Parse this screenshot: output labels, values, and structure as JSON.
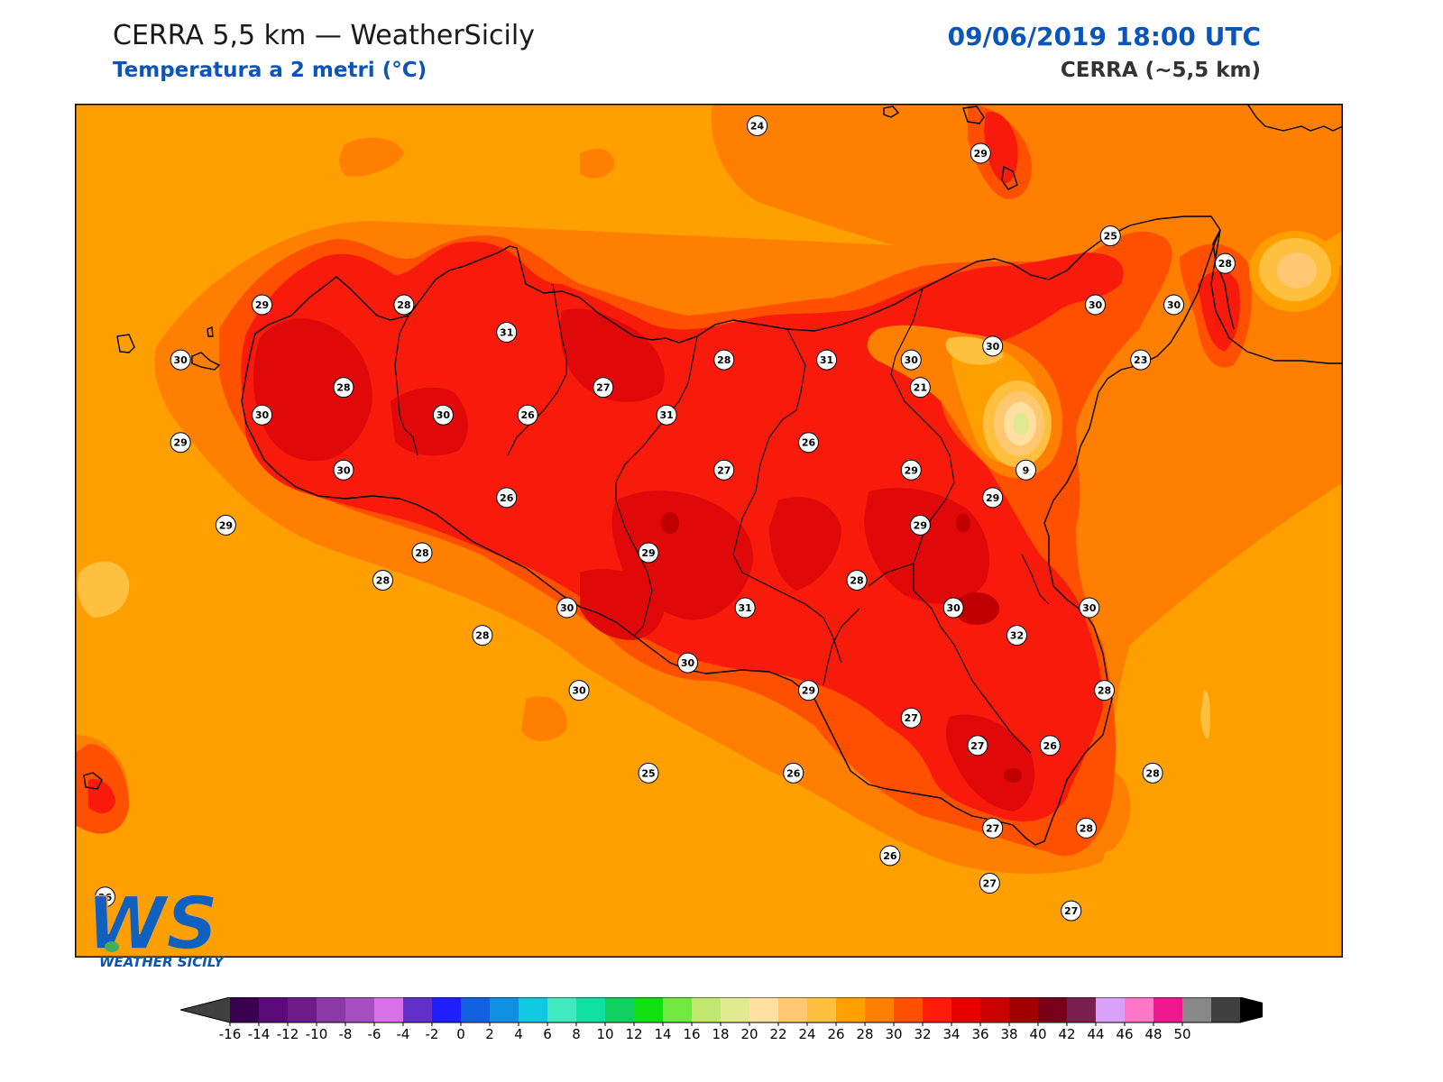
{
  "header": {
    "title": "CERRA 5,5 km — WeatherSicily",
    "subtitle": "Temperatura a 2 metri (°C)",
    "datetime": "09/06/2019 18:00 UTC",
    "model": "CERRA (~5,5 km)"
  },
  "colors": {
    "accent_blue": "#0a55b8",
    "sea_orange": "#ffa000",
    "land_red": "#f81a0a"
  },
  "colorbar": {
    "ticks": [
      "-16",
      "-14",
      "-12",
      "-10",
      "-8",
      "-6",
      "-4",
      "-2",
      "0",
      "2",
      "4",
      "6",
      "8",
      "10",
      "12",
      "14",
      "16",
      "18",
      "20",
      "22",
      "24",
      "26",
      "28",
      "30",
      "32",
      "34",
      "36",
      "38",
      "40",
      "42",
      "44",
      "46",
      "48",
      "50"
    ],
    "colors": [
      "#3a0050",
      "#5a0a7a",
      "#6e1c8a",
      "#8a3aa6",
      "#a64ec0",
      "#d870e8",
      "#6030c8",
      "#2020ff",
      "#1060e0",
      "#1090e0",
      "#10c8e0",
      "#40e8c0",
      "#10e0a0",
      "#10d060",
      "#10e010",
      "#70e840",
      "#c0e870",
      "#e0e890",
      "#ffe0a0",
      "#ffc870",
      "#ffc040",
      "#ffa000",
      "#ff8000",
      "#ff5000",
      "#ff1a0a",
      "#e80000",
      "#c80000",
      "#a00000",
      "#780018",
      "#7a2050",
      "#d8a0f8",
      "#ff78c8",
      "#f01890",
      "#888888",
      "#404040"
    ]
  },
  "map_labels": [
    {
      "v": "24",
      "lon": 14.11,
      "lat": 39.0
    },
    {
      "v": "29",
      "lon": 14.85,
      "lat": 38.9
    },
    {
      "v": "25",
      "lon": 15.28,
      "lat": 38.6
    },
    {
      "v": "28",
      "lon": 15.66,
      "lat": 38.5
    },
    {
      "v": "23",
      "lon": 15.38,
      "lat": 38.15
    },
    {
      "v": "29",
      "lon": 12.47,
      "lat": 38.35
    },
    {
      "v": "28",
      "lon": 12.94,
      "lat": 38.35
    },
    {
      "v": "31",
      "lon": 13.28,
      "lat": 38.25
    },
    {
      "v": "30",
      "lon": 12.2,
      "lat": 38.15
    },
    {
      "v": "28",
      "lon": 12.74,
      "lat": 38.05
    },
    {
      "v": "26",
      "lon": 13.35,
      "lat": 37.95
    },
    {
      "v": "27",
      "lon": 13.6,
      "lat": 38.05
    },
    {
      "v": "28",
      "lon": 14.0,
      "lat": 38.15
    },
    {
      "v": "31",
      "lon": 14.34,
      "lat": 38.15
    },
    {
      "v": "30",
      "lon": 14.62,
      "lat": 38.15
    },
    {
      "v": "30",
      "lon": 14.89,
      "lat": 38.2
    },
    {
      "v": "30",
      "lon": 15.23,
      "lat": 38.35
    },
    {
      "v": "30",
      "lon": 15.49,
      "lat": 38.35
    },
    {
      "v": "21",
      "lon": 14.65,
      "lat": 38.05
    },
    {
      "v": "30",
      "lon": 12.47,
      "lat": 37.95
    },
    {
      "v": "30",
      "lon": 13.07,
      "lat": 37.95
    },
    {
      "v": "31",
      "lon": 13.81,
      "lat": 37.95
    },
    {
      "v": "26",
      "lon": 14.28,
      "lat": 37.85
    },
    {
      "v": "29",
      "lon": 12.2,
      "lat": 37.85
    },
    {
      "v": "30",
      "lon": 12.74,
      "lat": 37.75
    },
    {
      "v": "27",
      "lon": 14.0,
      "lat": 37.75
    },
    {
      "v": "29",
      "lon": 14.62,
      "lat": 37.75
    },
    {
      "v": "29",
      "lon": 14.89,
      "lat": 37.65
    },
    {
      "v": "9",
      "lon": 15.0,
      "lat": 37.75
    },
    {
      "v": "26",
      "lon": 13.28,
      "lat": 37.65
    },
    {
      "v": "29",
      "lon": 12.35,
      "lat": 37.55
    },
    {
      "v": "28",
      "lon": 13.0,
      "lat": 37.45
    },
    {
      "v": "29",
      "lon": 13.75,
      "lat": 37.45
    },
    {
      "v": "29",
      "lon": 14.65,
      "lat": 37.55
    },
    {
      "v": "28",
      "lon": 12.87,
      "lat": 37.35
    },
    {
      "v": "30",
      "lon": 13.48,
      "lat": 37.25
    },
    {
      "v": "31",
      "lon": 14.07,
      "lat": 37.25
    },
    {
      "v": "28",
      "lon": 14.44,
      "lat": 37.35
    },
    {
      "v": "30",
      "lon": 14.76,
      "lat": 37.25
    },
    {
      "v": "30",
      "lon": 15.21,
      "lat": 37.25
    },
    {
      "v": "28",
      "lon": 13.2,
      "lat": 37.15
    },
    {
      "v": "32",
      "lon": 14.97,
      "lat": 37.15
    },
    {
      "v": "30",
      "lon": 13.88,
      "lat": 37.05
    },
    {
      "v": "30",
      "lon": 13.52,
      "lat": 36.95
    },
    {
      "v": "29",
      "lon": 14.28,
      "lat": 36.95
    },
    {
      "v": "28",
      "lon": 15.26,
      "lat": 36.95
    },
    {
      "v": "27",
      "lon": 14.62,
      "lat": 36.85
    },
    {
      "v": "27",
      "lon": 14.84,
      "lat": 36.75
    },
    {
      "v": "26",
      "lon": 15.08,
      "lat": 36.75
    },
    {
      "v": "25",
      "lon": 13.75,
      "lat": 36.65
    },
    {
      "v": "26",
      "lon": 14.23,
      "lat": 36.65
    },
    {
      "v": "28",
      "lon": 15.42,
      "lat": 36.65
    },
    {
      "v": "27",
      "lon": 14.89,
      "lat": 36.45
    },
    {
      "v": "28",
      "lon": 15.2,
      "lat": 36.45
    },
    {
      "v": "26",
      "lon": 14.55,
      "lat": 36.35
    },
    {
      "v": "27",
      "lon": 14.88,
      "lat": 36.25
    },
    {
      "v": "27",
      "lon": 15.15,
      "lat": 36.15
    },
    {
      "v": "26",
      "lon": 11.95,
      "lat": 36.2
    }
  ],
  "logo": {
    "letters": "WS",
    "text": "WEATHER SICILY"
  }
}
